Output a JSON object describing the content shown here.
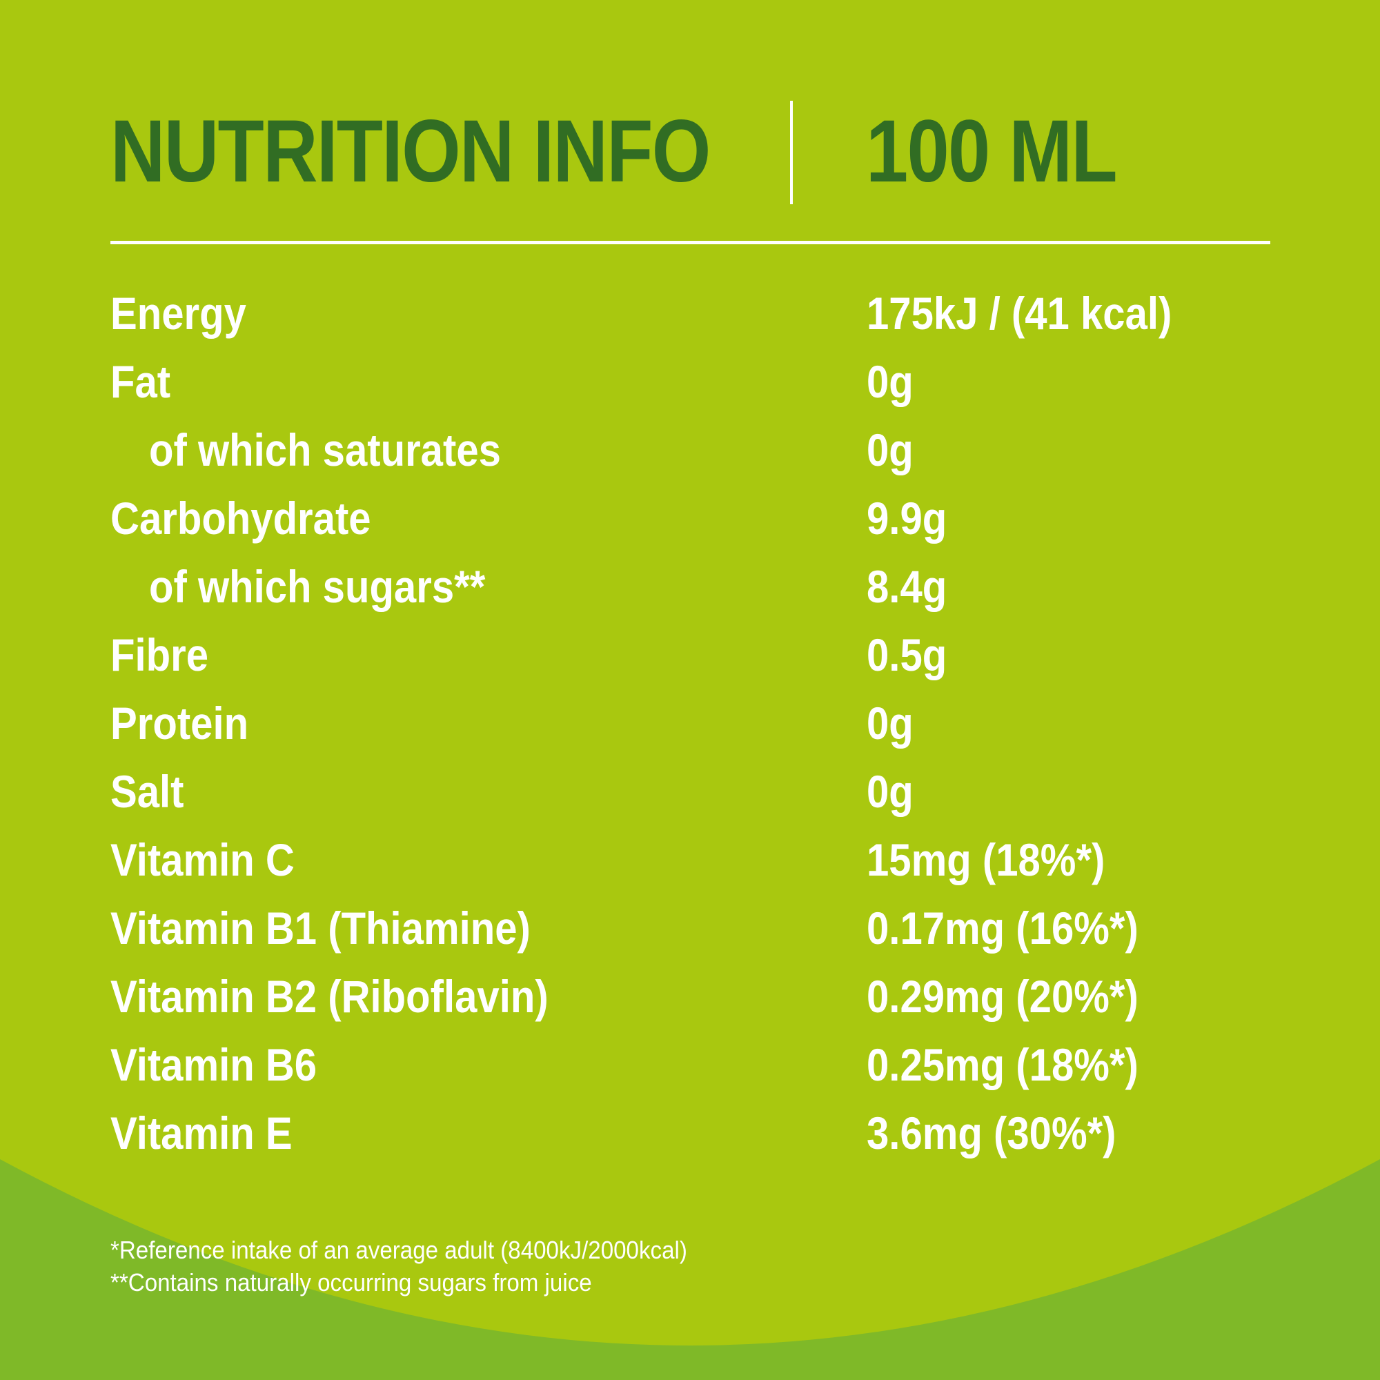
{
  "colors": {
    "background": "#a9c80f",
    "bottom_wave": "#7fb928",
    "title": "#316d23",
    "text": "#ffffff",
    "divider": "#ffffff"
  },
  "header": {
    "title": "NUTRITION INFO",
    "serving": "100 ML"
  },
  "nutrients": [
    {
      "label": "Energy",
      "value": "175kJ / (41 kcal)"
    },
    {
      "label": "Fat",
      "value": "0g"
    },
    {
      "label": "of which saturates",
      "value": "0g"
    },
    {
      "label": "Carbohydrate",
      "value": "9.9g"
    },
    {
      "label": "of which sugars**",
      "value": "8.4g"
    },
    {
      "label": "Fibre",
      "value": "0.5g"
    },
    {
      "label": "Protein",
      "value": "0g"
    },
    {
      "label": "Salt",
      "value": "0g"
    },
    {
      "label": "Vitamin C",
      "value": "15mg (18%*)"
    },
    {
      "label": "Vitamin B1 (Thiamine)",
      "value": "0.17mg (16%*)"
    },
    {
      "label": "Vitamin B2 (Riboflavin)",
      "value": "0.29mg (20%*)"
    },
    {
      "label": "Vitamin B6",
      "value": "0.25mg (18%*)"
    },
    {
      "label": "Vitamin E",
      "value": "3.6mg (30%*)"
    }
  ],
  "footnotes": {
    "reference_intake": "*Reference intake of an average adult (8400kJ/2000kcal)",
    "sugars_note": "**Contains naturally occurring sugars from juice"
  }
}
